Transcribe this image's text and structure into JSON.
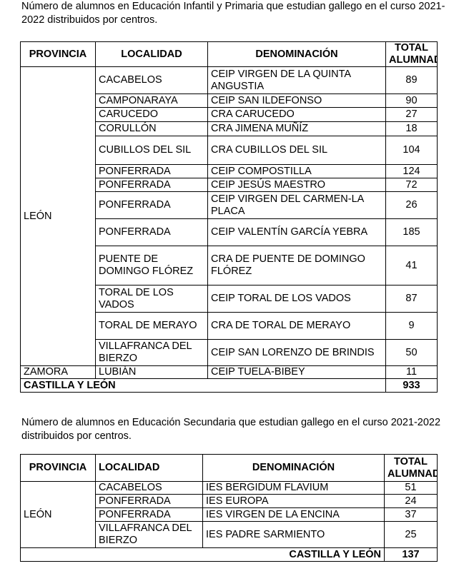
{
  "caption1": "Número de alumnos en Educación Infantil y Primaria que estudian gallego en el curso 2021-2022 distribuidos por centros.",
  "caption2": "Número de alumnos en Educación Secundaria que estudian gallego en el curso 2021-2022 distribuidos por centros.",
  "headers": [
    "PROVINCIA",
    "LOCALIDAD",
    "DENOMINACIÓN",
    "TOTAL ALUMNADO"
  ],
  "table1": {
    "groups": [
      {
        "provincia": "LEÓN",
        "rows": [
          [
            "CACABELOS",
            "CEIP VIRGEN DE LA QUINTA ANGUSTIA",
            "89"
          ],
          [
            "CAMPONARAYA",
            "CEIP SAN ILDEFONSO",
            "90"
          ],
          [
            "CARUCEDO",
            "CRA CARUCEDO",
            "27"
          ],
          [
            "CORULLÓN",
            "CRA JIMENA MUÑÍZ",
            "18"
          ],
          [
            "CUBILLOS DEL SIL",
            "CRA CUBILLOS DEL SIL",
            "104"
          ],
          [
            "PONFERRADA",
            "CEIP COMPOSTILLA",
            "124"
          ],
          [
            "PONFERRADA",
            "CEIP JESÚS MAESTRO",
            "72"
          ],
          [
            "PONFERRADA",
            "CEIP VIRGEN DEL CARMEN-LA PLACA",
            "26"
          ],
          [
            "PONFERRADA",
            "CEIP VALENTÍN GARCÍA YEBRA",
            "185"
          ],
          [
            "PUENTE DE DOMINGO FLÓREZ",
            "CRA DE PUENTE DE DOMINGO FLÓREZ",
            "41"
          ],
          [
            "TORAL DE LOS VADOS",
            "CEIP TORAL DE LOS VADOS",
            "87"
          ],
          [
            "TORAL DE MERAYO",
            "CRA DE TORAL DE MERAYO",
            "9"
          ],
          [
            "VILLAFRANCA DEL BIERZO",
            "CEIP SAN LORENZO DE BRINDIS",
            "50"
          ]
        ]
      },
      {
        "provincia": "ZAMORA",
        "rows": [
          [
            "LUBIÁN",
            "CEIP TUELA-BIBEY",
            "11"
          ]
        ]
      }
    ],
    "total_label": "CASTILLA Y LEÓN",
    "total": "933"
  },
  "table2": {
    "groups": [
      {
        "provincia": "LEÓN",
        "rows": [
          [
            "CACABELOS",
            "IES BERGIDUM FLAVIUM",
            "51"
          ],
          [
            "PONFERRADA",
            "IES EUROPA",
            "24"
          ],
          [
            "PONFERRADA",
            "IES VIRGEN DE LA ENCINA",
            "37"
          ],
          [
            "VILLAFRANCA DEL BIERZO",
            "IES PADRE SARMIENTO",
            "25"
          ]
        ]
      }
    ],
    "total_label": "CASTILLA Y LEÓN",
    "total": "137"
  }
}
